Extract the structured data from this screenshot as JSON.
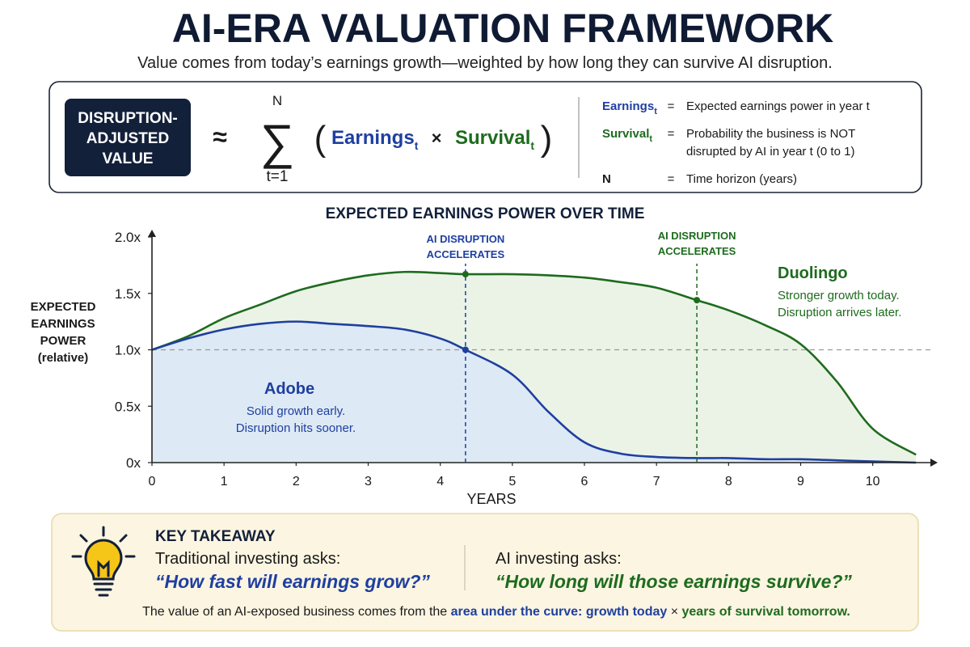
{
  "header": {
    "title": "AI-ERA VALUATION FRAMEWORK",
    "subtitle": "Value comes from today’s earnings growth—weighted by how long they can survive AI disruption."
  },
  "formula": {
    "box_label": [
      "DISRUPTION-",
      "ADJUSTED",
      "VALUE"
    ],
    "approx": "≈",
    "sum": "∑",
    "sum_upper": "N",
    "sum_lower": "t=1",
    "open": "(",
    "close": ")",
    "term1": "Earnings",
    "term1_sub": "t",
    "times": "×",
    "term2": "Survival",
    "term2_sub": "t",
    "definitions": [
      {
        "symbol": "Earnings",
        "sub": "t",
        "eq": "=",
        "text": [
          "Expected earnings power in year t"
        ]
      },
      {
        "symbol": "Survival",
        "sub": "t",
        "eq": "=",
        "text": [
          "Probability the business is NOT",
          "disrupted by AI in year t (0 to 1)"
        ]
      },
      {
        "symbol": "N",
        "eq": "=",
        "text": [
          "Time horizon (years)"
        ]
      }
    ]
  },
  "chart_data": {
    "type": "line",
    "title": "EXPECTED EARNINGS POWER OVER TIME",
    "xlabel": "YEARS",
    "ylabel": [
      "EXPECTED",
      "EARNINGS",
      "POWER",
      "(relative)"
    ],
    "x": [
      0,
      0.5,
      1,
      1.5,
      2,
      2.5,
      3,
      3.5,
      4,
      4.35,
      5,
      5.5,
      6,
      6.5,
      7,
      7.56,
      8,
      8.5,
      9,
      9.5,
      10,
      10.6
    ],
    "series": [
      {
        "name": "Adobe",
        "color": "#1f3fa0",
        "fill": "#dbe6f7",
        "note": [
          "Solid growth early.",
          "Disruption hits sooner."
        ],
        "values": [
          1.0,
          1.1,
          1.18,
          1.23,
          1.25,
          1.23,
          1.21,
          1.18,
          1.1,
          1.0,
          0.78,
          0.45,
          0.18,
          0.08,
          0.05,
          0.04,
          0.04,
          0.03,
          0.03,
          0.02,
          0.01,
          0.0
        ]
      },
      {
        "name": "Duolingo",
        "color": "#1e6b1e",
        "fill": "#e8f1e2",
        "note": [
          "Stronger growth today.",
          "Disruption arrives later."
        ],
        "values": [
          1.0,
          1.12,
          1.28,
          1.4,
          1.52,
          1.6,
          1.66,
          1.69,
          1.68,
          1.67,
          1.67,
          1.66,
          1.64,
          1.6,
          1.55,
          1.44,
          1.35,
          1.22,
          1.05,
          0.72,
          0.3,
          0.07
        ]
      }
    ],
    "xlim": [
      0,
      10.8
    ],
    "ylim": [
      0,
      2.0
    ],
    "xticks": [
      0,
      1,
      2,
      3,
      4,
      5,
      6,
      7,
      8,
      9,
      10
    ],
    "yticks": [
      {
        "value": 0,
        "label": "0x"
      },
      {
        "value": 0.5,
        "label": "0.5x"
      },
      {
        "value": 1.0,
        "label": "1.0x"
      },
      {
        "value": 1.5,
        "label": "1.5x"
      },
      {
        "value": 2.0,
        "label": "2.0x"
      }
    ],
    "hline": 1.0,
    "annotations": [
      {
        "x": 4.35,
        "lines": [
          "AI DISRUPTION",
          "ACCELERATES"
        ],
        "color": "#1f3fa0",
        "marks": [
          "Adobe",
          "Duolingo"
        ]
      },
      {
        "x": 7.56,
        "lines": [
          "AI DISRUPTION",
          "ACCELERATES"
        ],
        "color": "#1e6b1e",
        "marks": [
          "Duolingo"
        ]
      }
    ]
  },
  "takeaway": {
    "heading": "KEY TAKEAWAY",
    "left_ask": "Traditional investing asks:",
    "left_quote": "“How fast will earnings grow?”",
    "right_ask": "AI investing asks:",
    "right_quote": "“How long will those earnings survive?”",
    "footer": [
      {
        "text": "The value of an AI-exposed business comes from the ",
        "style": "plain"
      },
      {
        "text": "area under the curve: growth today",
        "style": "blue"
      },
      {
        "text": " × ",
        "style": "plain"
      },
      {
        "text": "years of survival tomorrow.",
        "style": "green"
      }
    ]
  }
}
